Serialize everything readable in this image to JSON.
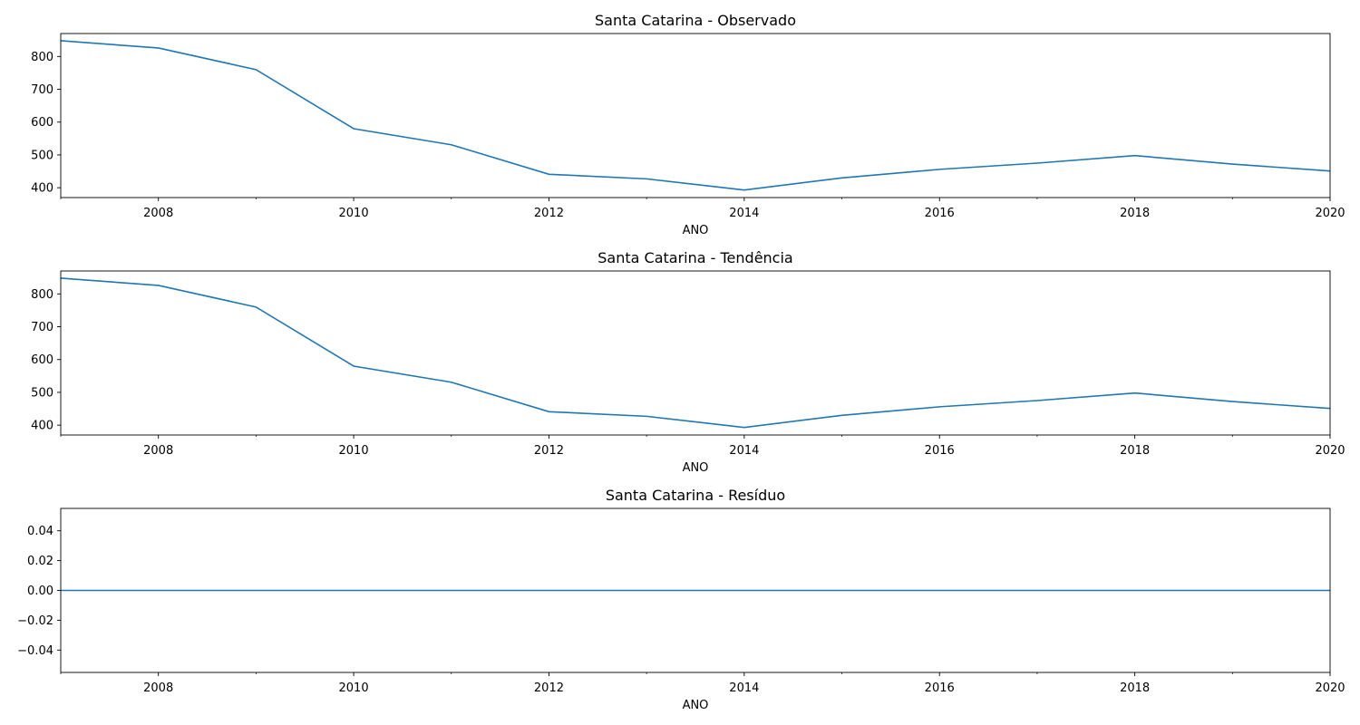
{
  "chart_data": [
    {
      "type": "line",
      "title": "Santa Catarina - Observado",
      "xlabel": "ANO",
      "ylabel": "",
      "x": [
        2007,
        2008,
        2009,
        2010,
        2011,
        2012,
        2013,
        2014,
        2015,
        2016,
        2017,
        2018,
        2019,
        2020
      ],
      "values": [
        848,
        826,
        760,
        580,
        531,
        441,
        427,
        393,
        430,
        456,
        475,
        498,
        472,
        451
      ],
      "xlim": [
        2007,
        2020
      ],
      "ylim": [
        370,
        870
      ],
      "xticks": [
        2008,
        2010,
        2012,
        2014,
        2016,
        2018,
        2020
      ],
      "xminor_ticks": [
        2007,
        2009,
        2011,
        2013,
        2015,
        2017,
        2019
      ],
      "yticks": [
        400,
        500,
        600,
        700,
        800
      ],
      "xtick_labels": [
        "2008",
        "2010",
        "2012",
        "2014",
        "2016",
        "2018",
        "2020"
      ],
      "ytick_labels": [
        "400",
        "500",
        "600",
        "700",
        "800"
      ],
      "color": "#1f77b4",
      "grid": false
    },
    {
      "type": "line",
      "title": "Santa Catarina - Tendência",
      "xlabel": "ANO",
      "ylabel": "",
      "x": [
        2007,
        2008,
        2009,
        2010,
        2011,
        2012,
        2013,
        2014,
        2015,
        2016,
        2017,
        2018,
        2019,
        2020
      ],
      "values": [
        848,
        826,
        760,
        580,
        531,
        441,
        427,
        393,
        430,
        456,
        475,
        498,
        472,
        451
      ],
      "xlim": [
        2007,
        2020
      ],
      "ylim": [
        370,
        870
      ],
      "xticks": [
        2008,
        2010,
        2012,
        2014,
        2016,
        2018,
        2020
      ],
      "xminor_ticks": [
        2007,
        2009,
        2011,
        2013,
        2015,
        2017,
        2019
      ],
      "yticks": [
        400,
        500,
        600,
        700,
        800
      ],
      "xtick_labels": [
        "2008",
        "2010",
        "2012",
        "2014",
        "2016",
        "2018",
        "2020"
      ],
      "ytick_labels": [
        "400",
        "500",
        "600",
        "700",
        "800"
      ],
      "color": "#1f77b4",
      "grid": false
    },
    {
      "type": "line",
      "title": "Santa Catarina - Resíduo",
      "xlabel": "ANO",
      "ylabel": "",
      "x": [
        2007,
        2008,
        2009,
        2010,
        2011,
        2012,
        2013,
        2014,
        2015,
        2016,
        2017,
        2018,
        2019,
        2020
      ],
      "values": [
        0,
        0,
        0,
        0,
        0,
        0,
        0,
        0,
        0,
        0,
        0,
        0,
        0,
        0
      ],
      "xlim": [
        2007,
        2020
      ],
      "ylim": [
        -0.055,
        0.055
      ],
      "xticks": [
        2008,
        2010,
        2012,
        2014,
        2016,
        2018,
        2020
      ],
      "xminor_ticks": [
        2007,
        2009,
        2011,
        2013,
        2015,
        2017,
        2019
      ],
      "yticks": [
        -0.04,
        -0.02,
        0,
        0.02,
        0.04
      ],
      "xtick_labels": [
        "2008",
        "2010",
        "2012",
        "2014",
        "2016",
        "2018",
        "2020"
      ],
      "ytick_labels": [
        "−0.04",
        "−0.02",
        "0.00",
        "0.02",
        "0.04"
      ],
      "color": "#1f77b4",
      "grid": false
    }
  ]
}
